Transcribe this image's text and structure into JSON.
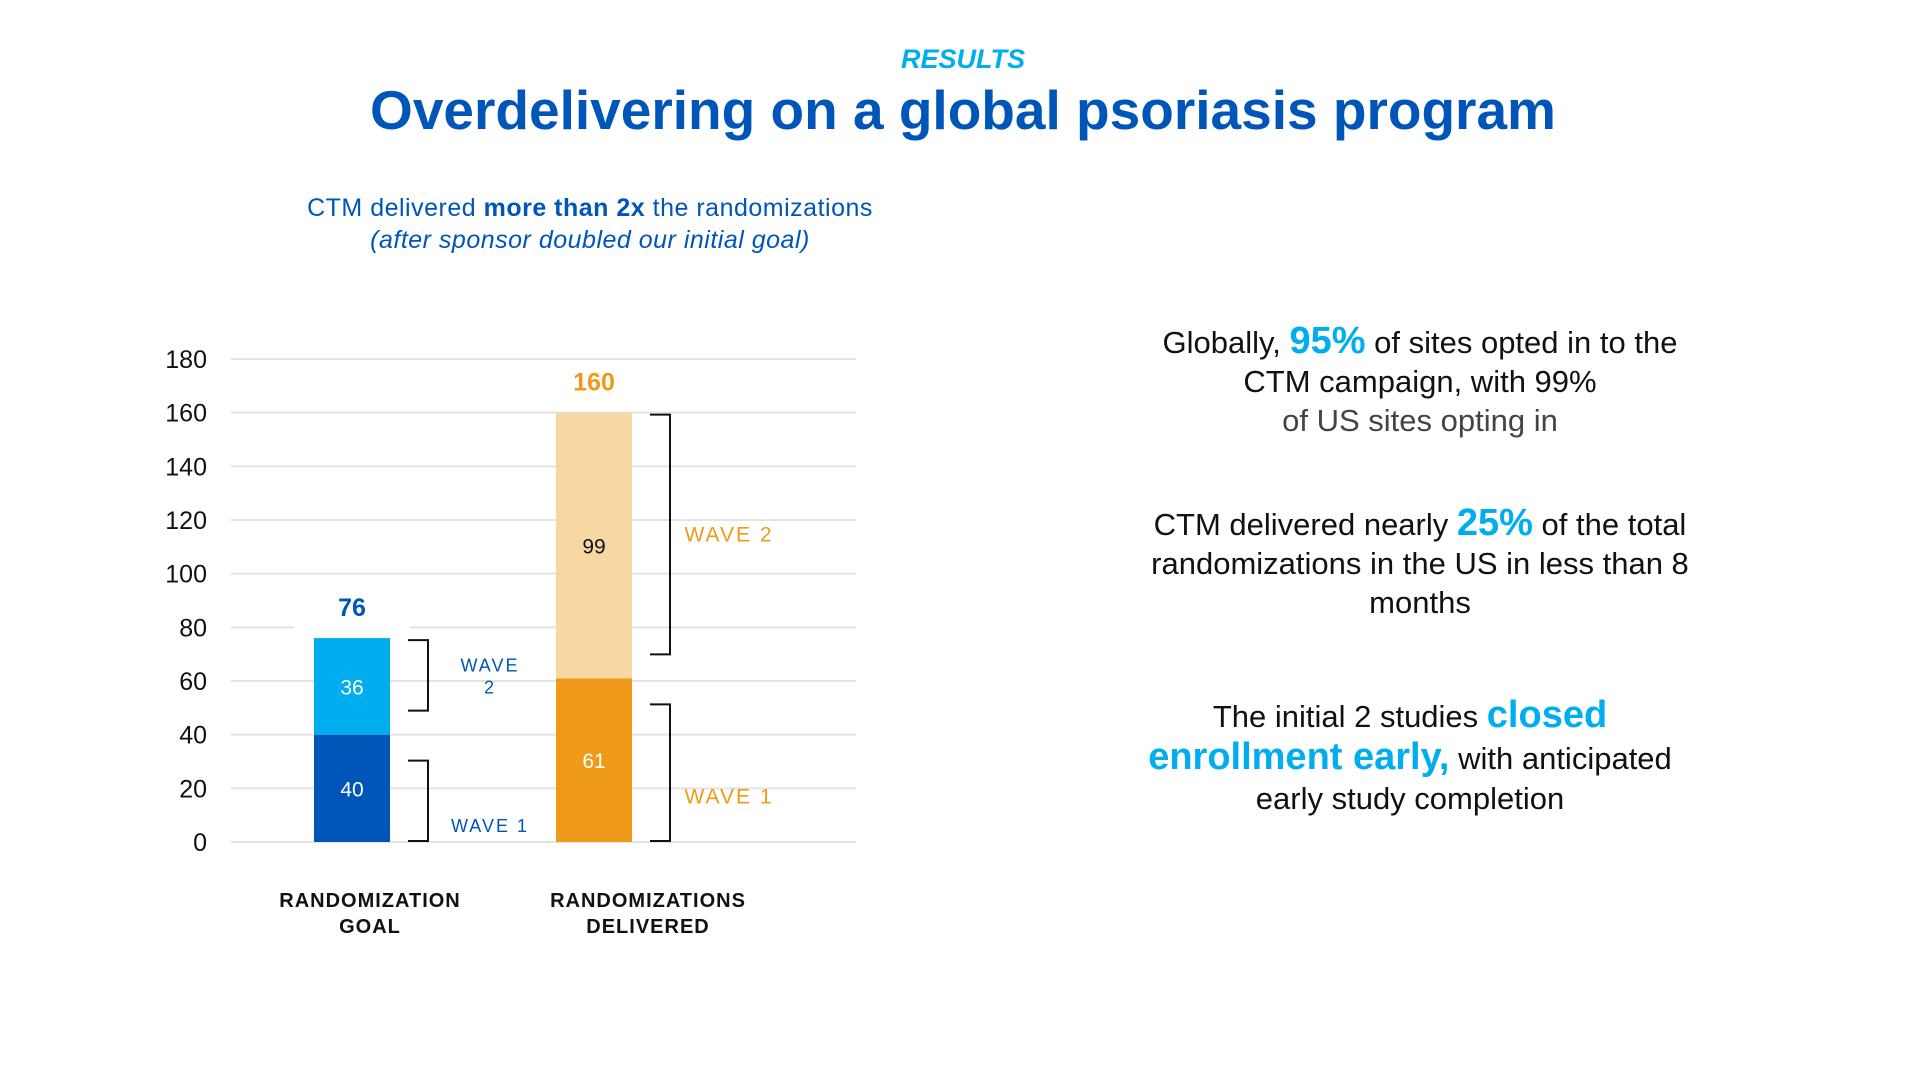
{
  "header": {
    "eyebrow": "RESULTS",
    "title": "Overdelivering on a global psoriasis program"
  },
  "subtitle": {
    "line1_pre": "CTM delivered ",
    "line1_bold": "more than 2x",
    "line1_post": " the randomizations",
    "line2": "(after sponsor doubled our initial goal)"
  },
  "stats": [
    {
      "pre": "Globally, ",
      "highlight": "95%",
      "post": " of sites opted in to the CTM campaign, with 99%",
      "tail": "of US sites opting in"
    },
    {
      "pre": "CTM delivered nearly ",
      "highlight": "25%",
      "post": " of the total randomizations in the US in less than 8 months"
    },
    {
      "pre": "The initial 2 studies ",
      "highlight": "closed enrollment early,",
      "post": " with anticipated early study completion"
    }
  ],
  "colors": {
    "goal_wave1": "#0055b8",
    "goal_wave2": "#00aeef",
    "delivered_wave1": "#f09a1a",
    "delivered_wave2": "#f7d7a4",
    "goal_label": "#0055b8",
    "delivered_label": "#f09a1a",
    "grid": "#e3e3e3",
    "highlight": "#00aeef"
  },
  "chart_data": {
    "type": "bar",
    "stacked": true,
    "title": "",
    "xlabel": "",
    "ylabel": "",
    "ylim": [
      0,
      180
    ],
    "yticks": [
      0,
      20,
      40,
      60,
      80,
      100,
      120,
      140,
      160,
      180
    ],
    "grid": true,
    "categories": [
      "RANDOMIZATION GOAL",
      "RANDOMIZATIONS DELIVERED"
    ],
    "category_lines": [
      [
        "RANDOMIZATION",
        "GOAL"
      ],
      [
        "RANDOMIZATIONS",
        "DELIVERED"
      ]
    ],
    "series": [
      {
        "name": "Wave 1",
        "values": [
          40,
          61
        ]
      },
      {
        "name": "Wave 2",
        "values": [
          36,
          99
        ]
      }
    ],
    "totals": [
      76,
      160
    ],
    "wave_labels": {
      "goal": {
        "wave1": [
          "WAVE 1"
        ],
        "wave2": [
          "WAVE",
          "2"
        ]
      },
      "delivered": {
        "wave1": [
          "WAVE 1"
        ],
        "wave2": [
          "WAVE 2"
        ]
      }
    }
  }
}
